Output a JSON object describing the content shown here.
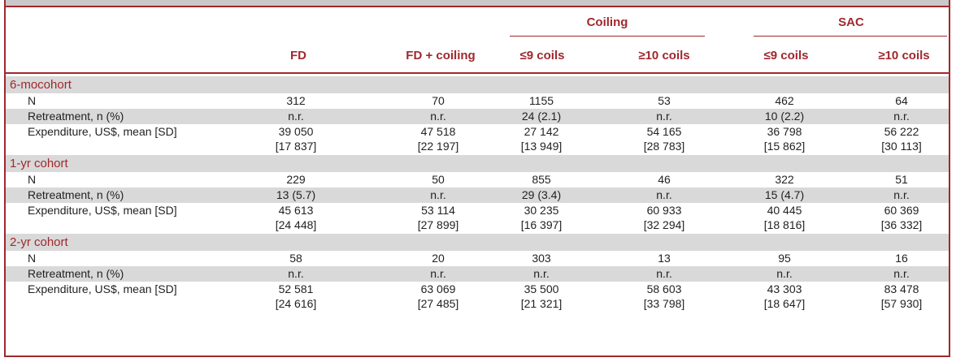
{
  "table": {
    "groups": [
      {
        "label": "Coiling"
      },
      {
        "label": "SAC"
      }
    ],
    "columns": [
      "FD",
      "FD + coiling",
      "≤9 coils",
      "≥10 coils",
      "≤9 coils",
      "≥10 coils"
    ],
    "rows": [
      {
        "type": "section",
        "label": "6-mocohort"
      },
      {
        "type": "data",
        "label": "N",
        "values": [
          "312",
          "70",
          "1155",
          "53",
          "462",
          "64"
        ]
      },
      {
        "type": "data",
        "label": "Retreatment, n (%)",
        "values": [
          "n.r.",
          "n.r.",
          "24 (2.1)",
          "n.r.",
          "10 (2.2)",
          "n.r."
        ]
      },
      {
        "type": "data2",
        "label": "Expenditure, US$, mean [SD]",
        "values": [
          "39 050",
          "47 518",
          "27 142",
          "54 165",
          "36 798",
          "56 222"
        ],
        "sd": [
          "[17 837]",
          "[22 197]",
          "[13 949]",
          "[28 783]",
          "[15 862]",
          "[30 113]"
        ]
      },
      {
        "type": "section",
        "label": "1-yr cohort"
      },
      {
        "type": "data",
        "label": "N",
        "values": [
          "229",
          "50",
          "855",
          "46",
          "322",
          "51"
        ]
      },
      {
        "type": "data",
        "label": "Retreatment, n (%)",
        "values": [
          "13 (5.7)",
          "n.r.",
          "29 (3.4)",
          "n.r.",
          "15 (4.7)",
          "n.r."
        ]
      },
      {
        "type": "data2",
        "label": "Expenditure, US$, mean [SD]",
        "values": [
          "45 613",
          "53 114",
          "30 235",
          "60 933",
          "40 445",
          "60 369"
        ],
        "sd": [
          "[24 448]",
          "[27 899]",
          "[16 397]",
          "[32 294]",
          "[18 816]",
          "[36 332]"
        ]
      },
      {
        "type": "section",
        "label": "2-yr cohort"
      },
      {
        "type": "data",
        "label": "N",
        "values": [
          "58",
          "20",
          "303",
          "13",
          "95",
          "16"
        ]
      },
      {
        "type": "data",
        "label": "Retreatment, n (%)",
        "values": [
          "n.r.",
          "n.r.",
          "n.r.",
          "n.r.",
          "n.r.",
          "n.r."
        ]
      },
      {
        "type": "data2",
        "label": "Expenditure, US$, mean [SD]",
        "values": [
          "52 581",
          "63 069",
          "35 500",
          "58 603",
          "43 303",
          "83 478"
        ],
        "sd": [
          "[24 616]",
          "[27 485]",
          "[21 321]",
          "[33 798]",
          "[18 647]",
          "[57 930]"
        ]
      }
    ],
    "colors": {
      "accent": "#a0282d",
      "shade": "#d9d9d9",
      "topbar": "#c9c9c9"
    }
  }
}
